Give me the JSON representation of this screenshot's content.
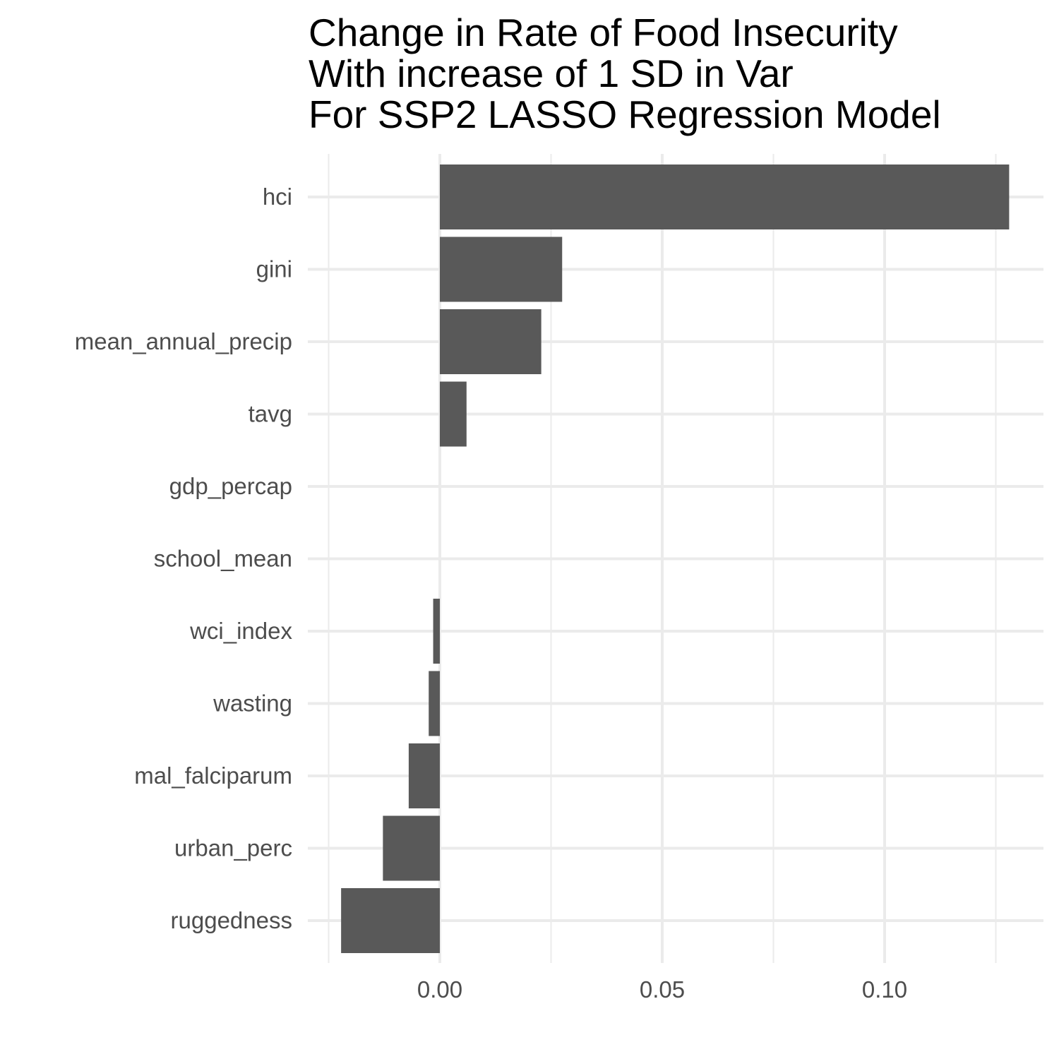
{
  "chart_data": {
    "type": "bar",
    "orientation": "horizontal",
    "title_lines": [
      "Change in Rate of Food Insecurity",
      "With increase of 1 SD in Var",
      "For SSP2 LASSO Regression Model"
    ],
    "xlabel": "",
    "ylabel": "",
    "categories": [
      "hci",
      "gini",
      "mean_annual_precip",
      "tavg",
      "gdp_percap",
      "school_mean",
      "wci_index",
      "wasting",
      "mal_falciparum",
      "urban_perc",
      "ruggedness"
    ],
    "values": [
      0.128,
      0.0275,
      0.0228,
      0.006,
      0.0,
      0.0,
      -0.0015,
      -0.0025,
      -0.007,
      -0.0128,
      -0.0222
    ],
    "xlim": [
      -0.025,
      0.135
    ],
    "xticks": [
      0.0,
      0.05,
      0.1
    ],
    "xtick_labels": [
      "0.00",
      "0.05",
      "0.10"
    ],
    "grid": true,
    "legend": "none",
    "bar_color": "#595959",
    "grid_color": "#ebebeb",
    "background": "#ffffff"
  }
}
